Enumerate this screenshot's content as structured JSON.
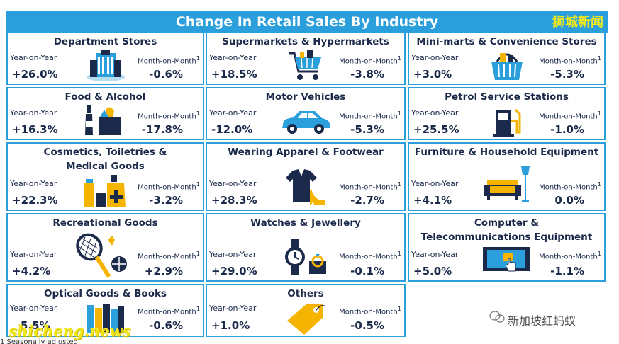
{
  "header": {
    "title": "Change In Retail Sales By Industry",
    "watermark": "狮城新闻"
  },
  "labels": {
    "yoy": "Year-on-Year",
    "mom": "Month-on-Month",
    "footnote_mark": "1"
  },
  "cards": [
    {
      "title": "Department Stores",
      "yoy": "+26.0%",
      "mom": "-0.6%",
      "icon": "mall-icon"
    },
    {
      "title": "Supermarkets & Hypermarkets",
      "yoy": "+18.5%",
      "mom": "-3.8%",
      "icon": "shopping-cart-icon"
    },
    {
      "title": "Mini-marts & Convenience Stores",
      "yoy": "+3.0%",
      "mom": "-5.3%",
      "icon": "basket-icon"
    },
    {
      "title": "Food & Alcohol",
      "yoy": "+16.3%",
      "mom": "-17.8%",
      "icon": "food-bag-icon"
    },
    {
      "title": "Motor Vehicles",
      "yoy": "-12.0%",
      "mom": "-5.3%",
      "icon": "car-icon"
    },
    {
      "title": "Petrol Service Stations",
      "yoy": "+25.5%",
      "mom": "-1.0%",
      "icon": "fuel-pump-icon"
    },
    {
      "title_1": "Cosmetics, Toiletries &",
      "title_2": "Medical Goods",
      "yoy": "+22.3%",
      "mom": "-3.2%",
      "icon": "cosmetics-icon"
    },
    {
      "title": "Wearing Apparel & Footwear",
      "yoy": "+28.3%",
      "mom": "-2.7%",
      "icon": "apparel-icon"
    },
    {
      "title": "Furniture & Household Equipment",
      "yoy": "+4.1%",
      "mom": "0.0%",
      "icon": "sofa-lamp-icon"
    },
    {
      "title": "Recreational Goods",
      "yoy": "+4.2%",
      "mom": "+2.9%",
      "icon": "racket-icon"
    },
    {
      "title": "Watches & Jewellery",
      "yoy": "+29.0%",
      "mom": "-0.1%",
      "icon": "watch-ring-icon"
    },
    {
      "title_1": "Computer &",
      "title_2": "Telecommunications Equipment",
      "yoy": "+5.0%",
      "mom": "-1.1%",
      "icon": "tablet-touch-icon"
    },
    {
      "title": "Optical Goods & Books",
      "yoy": "5.5%",
      "mom": "-0.6%",
      "icon": "books-icon"
    },
    {
      "title": "Others",
      "yoy": "+1.0%",
      "mom": "-0.5%",
      "icon": "price-tag-icon"
    }
  ],
  "footnote": "1 Seasonally adjusted",
  "watermarks": {
    "site": "shicheng.news",
    "account": "新加坡红蚂蚁"
  },
  "colors": {
    "accent": "#2a9fdb",
    "navy": "#1b2a4a",
    "yellow": "#f5b400"
  }
}
